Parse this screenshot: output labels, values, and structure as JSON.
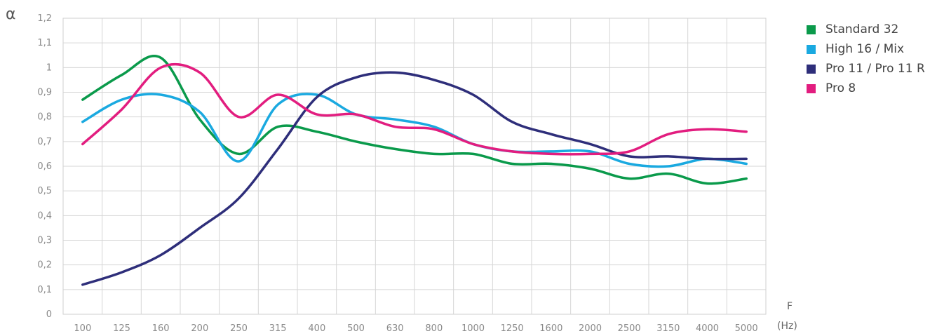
{
  "chart_data": {
    "type": "line",
    "ylabel": "α",
    "xlabel": "F",
    "xunit": "(Hz)",
    "ylim": [
      0,
      1.2
    ],
    "grid": true,
    "legend_position": "right",
    "y_ticks": [
      "0",
      "0,1",
      "0,2",
      "0,3",
      "0,4",
      "0,5",
      "0,6",
      "0,7",
      "0,8",
      "0,9",
      "1",
      "1,1",
      "1,2"
    ],
    "categories": [
      "100",
      "125",
      "160",
      "200",
      "250",
      "315",
      "400",
      "500",
      "630",
      "800",
      "1000",
      "1250",
      "1600",
      "2000",
      "2500",
      "3150",
      "4000",
      "5000"
    ],
    "series": [
      {
        "name": "Standard 32",
        "color": "#0a9a4b",
        "values": [
          0.87,
          0.97,
          1.04,
          0.79,
          0.65,
          0.76,
          0.74,
          0.7,
          0.67,
          0.65,
          0.65,
          0.61,
          0.61,
          0.59,
          0.55,
          0.57,
          0.53,
          0.55
        ]
      },
      {
        "name": "High 16 / Mix",
        "color": "#1aa9e0",
        "values": [
          0.78,
          0.87,
          0.89,
          0.82,
          0.62,
          0.85,
          0.89,
          0.81,
          0.79,
          0.76,
          0.69,
          0.66,
          0.66,
          0.66,
          0.61,
          0.6,
          0.63,
          0.61
        ]
      },
      {
        "name": "Pro 11 / Pro 11 R",
        "color": "#2e2e7a",
        "values": [
          0.12,
          0.17,
          0.24,
          0.35,
          0.47,
          0.67,
          0.88,
          0.96,
          0.98,
          0.95,
          0.89,
          0.78,
          0.73,
          0.69,
          0.64,
          0.64,
          0.63,
          0.63
        ]
      },
      {
        "name": "Pro 8",
        "color": "#e21d7f",
        "values": [
          0.69,
          0.83,
          1.0,
          0.98,
          0.8,
          0.89,
          0.81,
          0.81,
          0.76,
          0.75,
          0.69,
          0.66,
          0.65,
          0.65,
          0.66,
          0.73,
          0.75,
          0.74
        ]
      }
    ]
  }
}
